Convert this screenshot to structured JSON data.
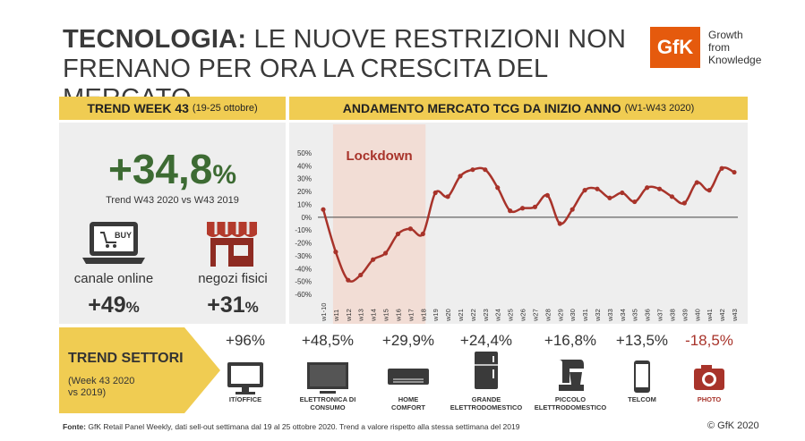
{
  "title": {
    "bold": "TECNOLOGIA:",
    "line1_rest": " LE NUOVE RESTRIZIONI NON",
    "line2": "FRENANO PER ORA LA CRESCITA DEL MERCATO"
  },
  "brand": {
    "logo": "GfK",
    "tagline": [
      "Growth",
      "from",
      "Knowledge"
    ],
    "color": "#e55a0d"
  },
  "trend_week": {
    "heading": "TREND WEEK 43",
    "heading_sub": "(19-25 ottobre)",
    "value": "+34,8",
    "value_unit": "%",
    "caption": "Trend W43 2020 vs W43 2019"
  },
  "channels": [
    {
      "label": "canale online",
      "value": "+49",
      "unit": "%",
      "icon": "laptop-buy-icon",
      "badge": "BUY"
    },
    {
      "label": "negozi fisici",
      "value": "+31",
      "unit": "%",
      "icon": "store-icon"
    }
  ],
  "market_chart": {
    "heading": "ANDAMENTO MERCATO TCG DA INIZIO ANNO",
    "heading_sub": "(W1-W43 2020)",
    "lockdown_label": "Lockdown"
  },
  "sectors_heading": {
    "title": "TREND SETTORI",
    "sub_line1": "(Week 43 2020",
    "sub_line2": "vs 2019)"
  },
  "sectors": [
    {
      "value": "+96%",
      "label": [
        "IT/OFFICE"
      ],
      "icon": "monitor-icon",
      "negative": false
    },
    {
      "value": "+48,5%",
      "label": [
        "ELETTRONICA DI",
        "CONSUMO"
      ],
      "icon": "tv-icon",
      "negative": false
    },
    {
      "value": "+29,9%",
      "label": [
        "HOME",
        "COMFORT"
      ],
      "icon": "air-conditioner-icon",
      "negative": false
    },
    {
      "value": "+24,4%",
      "label": [
        "GRANDE",
        "ELETTRODOMESTICO"
      ],
      "icon": "fridge-icon",
      "negative": false
    },
    {
      "value": "+16,8%",
      "label": [
        "PICCOLO",
        "ELETTRODOMESTICO"
      ],
      "icon": "mixer-icon",
      "negative": false
    },
    {
      "value": "+13,5%",
      "label": [
        "TELCOM"
      ],
      "icon": "smartphone-icon",
      "negative": false
    },
    {
      "value": "-18,5%",
      "label": [
        "PHOTO"
      ],
      "icon": "camera-icon",
      "negative": true
    }
  ],
  "footer": {
    "source_label": "Fonte:",
    "source_text": " GfK Retail Panel Weekly, dati sell-out settimana dal 19 al 25 ottobre 2020. Trend a valore rispetto alla stessa settimana del 2019",
    "copyright": "© GfK 2020"
  },
  "colors": {
    "accent_yellow": "#f0cc52",
    "line": "#a8332a",
    "lockdown_band": "#f2ddd5",
    "big_number": "#3d6b33"
  },
  "chart_data": {
    "type": "line",
    "categories": [
      "w1-10",
      "w11",
      "w12",
      "w13",
      "w14",
      "w15",
      "w16",
      "w17",
      "w18",
      "w19",
      "w20",
      "w21",
      "w22",
      "w23",
      "w24",
      "w25",
      "w26",
      "w27",
      "w28",
      "w29",
      "w30",
      "w31",
      "w32",
      "w33",
      "w34",
      "w35",
      "w36",
      "w37",
      "w38",
      "w39",
      "w40",
      "w41",
      "w42",
      "w43"
    ],
    "values": [
      6,
      -27,
      -49,
      -45,
      -33,
      -28,
      -13,
      -9,
      -13,
      19,
      16,
      32,
      37,
      37,
      23,
      5,
      7,
      8,
      17,
      -5,
      6,
      21,
      22,
      15,
      19,
      12,
      23,
      22,
      16,
      11,
      27,
      21,
      38,
      35
    ],
    "ylim": [
      -60,
      50
    ],
    "yticks": [
      "50%",
      "40%",
      "30%",
      "20%",
      "10%",
      "0%",
      "-10%",
      "-20%",
      "-30%",
      "-40%",
      "-50%",
      "-60%"
    ],
    "ytick_values": [
      50,
      40,
      30,
      20,
      10,
      0,
      -10,
      -20,
      -30,
      -40,
      -50,
      -60
    ],
    "lockdown_range": [
      "w11",
      "w18"
    ],
    "grid": false,
    "title": "ANDAMENTO MERCATO TCG DA INIZIO ANNO",
    "xlabel": "",
    "ylabel": ""
  }
}
